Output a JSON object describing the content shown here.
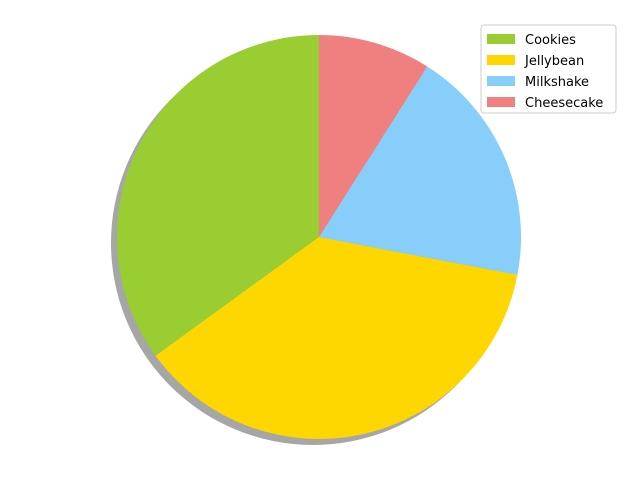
{
  "chart_data": {
    "type": "pie",
    "title": "",
    "categories": [
      "Cookies",
      "Jellybean",
      "Milkshake",
      "Cheesecake"
    ],
    "values": [
      35,
      37,
      19,
      9
    ],
    "colors": [
      "#9ACD32",
      "#FFD700",
      "#87CEFA",
      "#F08080"
    ],
    "start_angle_deg": 90,
    "direction": "counterclockwise",
    "shadow": true,
    "legend": {
      "position": "top-right",
      "labels": [
        "Cookies",
        "Jellybean",
        "Milkshake",
        "Cheesecake"
      ]
    }
  }
}
